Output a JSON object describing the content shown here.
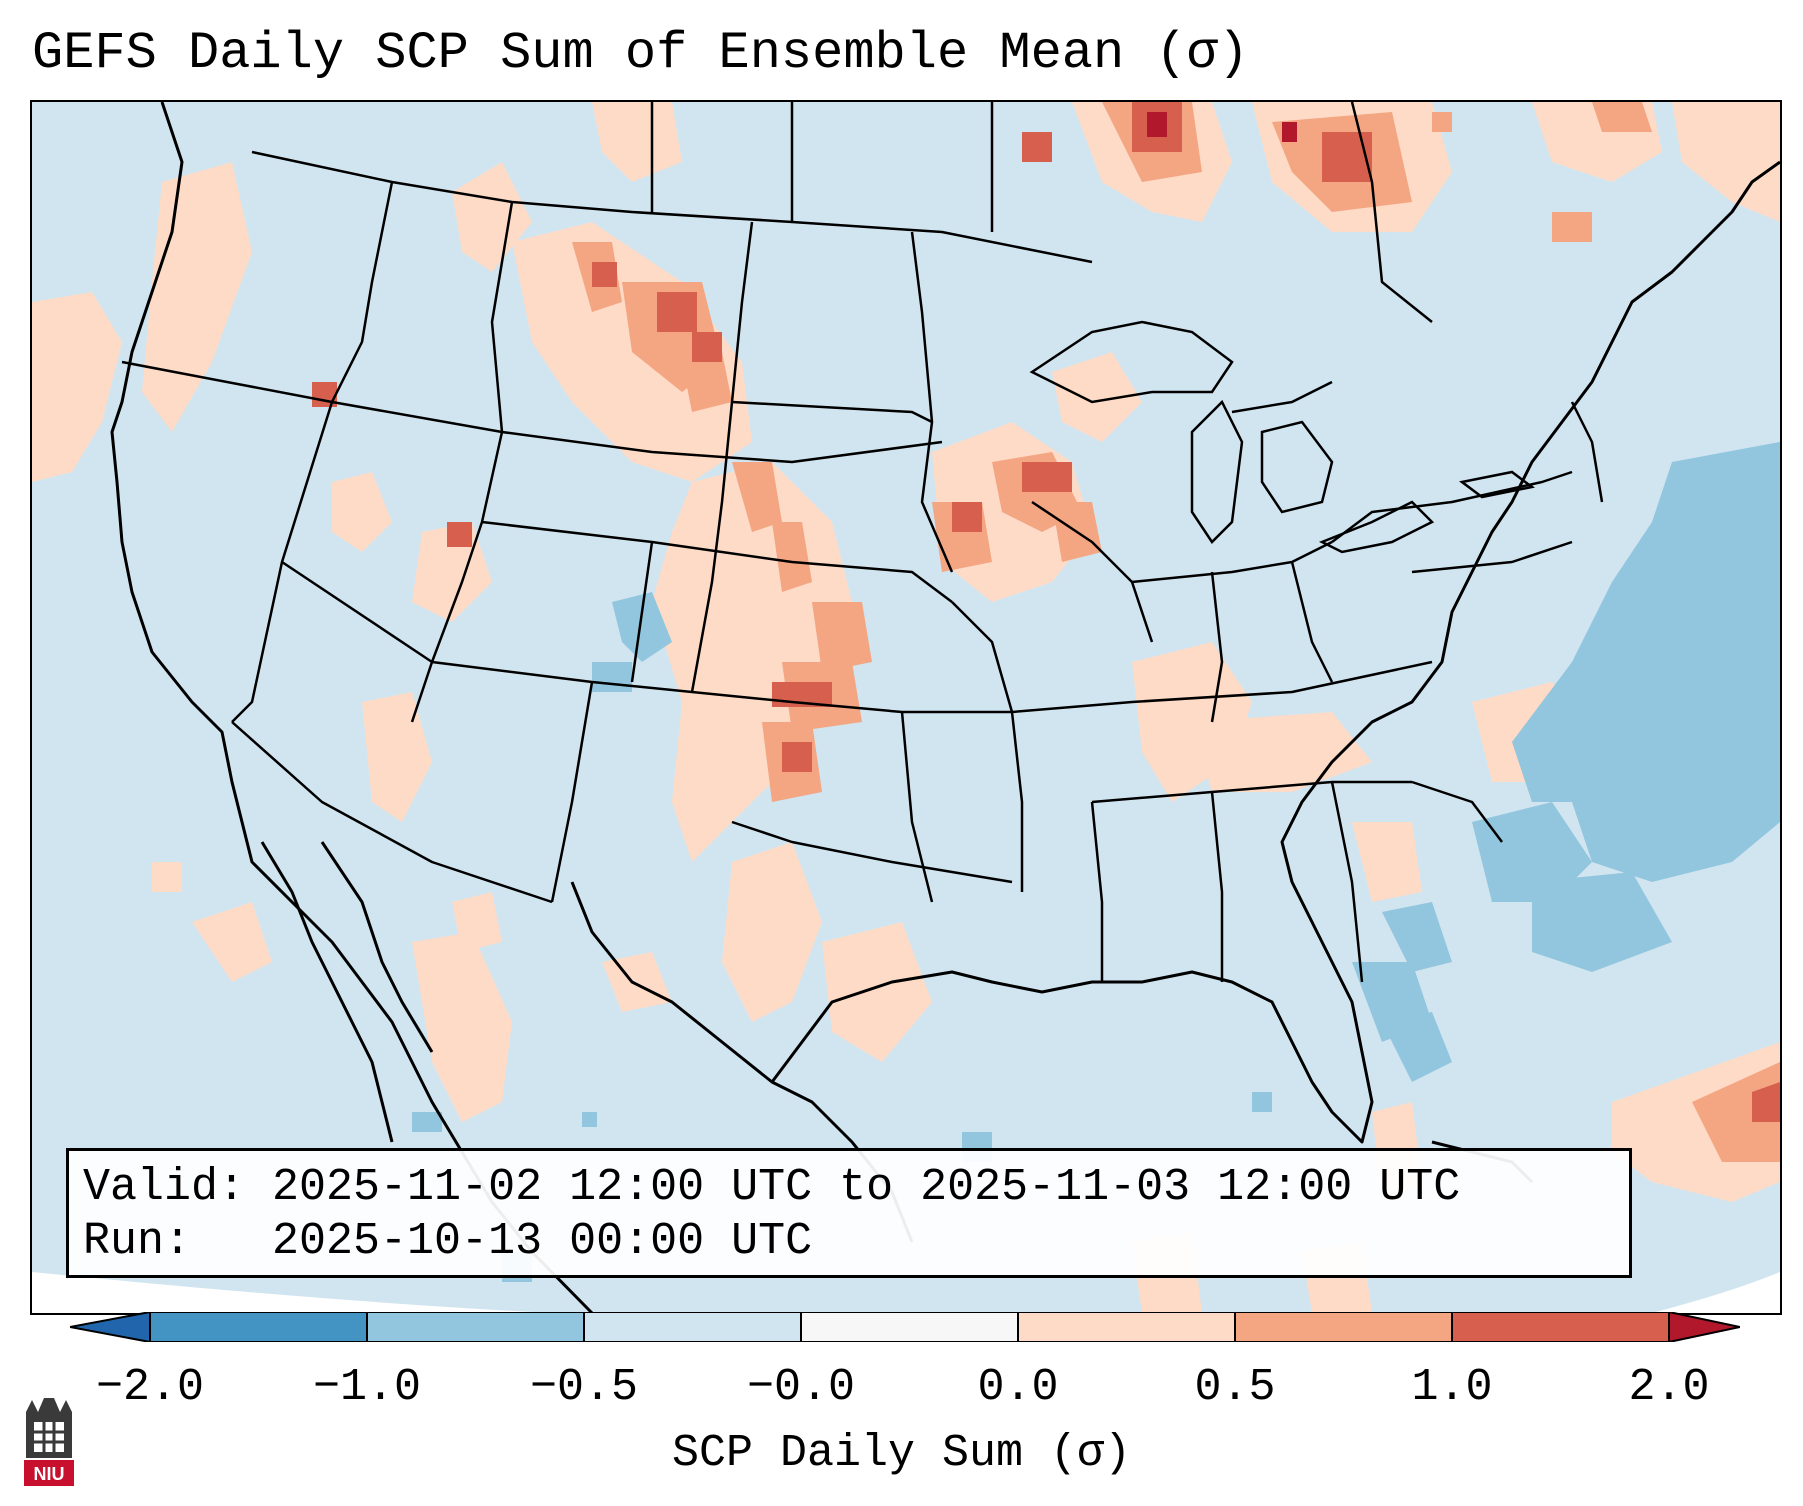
{
  "header": {
    "title": "GEFS Daily SCP Sum of Ensemble Mean (σ)"
  },
  "info": {
    "valid_line": "Valid: 2025-11-02 12:00 UTC to 2025-11-03 12:00 UTC",
    "run_line": "Run:   2025-10-13 00:00 UTC"
  },
  "colorbar": {
    "label": "SCP Daily Sum (σ)",
    "ticks": [
      "−2.0",
      "−1.0",
      "−0.5",
      "−0.0",
      "0.0",
      "0.5",
      "1.0",
      "2.0"
    ],
    "colors": {
      "extend_low": "#2166ac",
      "bin_neg2_neg1": "#4393c3",
      "bin_neg1_neg05": "#92c5de",
      "bin_neg05_0": "#d1e5f0",
      "bin_zero": "#f7f7f7",
      "bin_0_05": "#fddbc7",
      "bin_05_1": "#f4a582",
      "bin_1_2": "#d6604d",
      "extend_high": "#b2182b"
    }
  },
  "logo": {
    "text": "NIU"
  }
}
